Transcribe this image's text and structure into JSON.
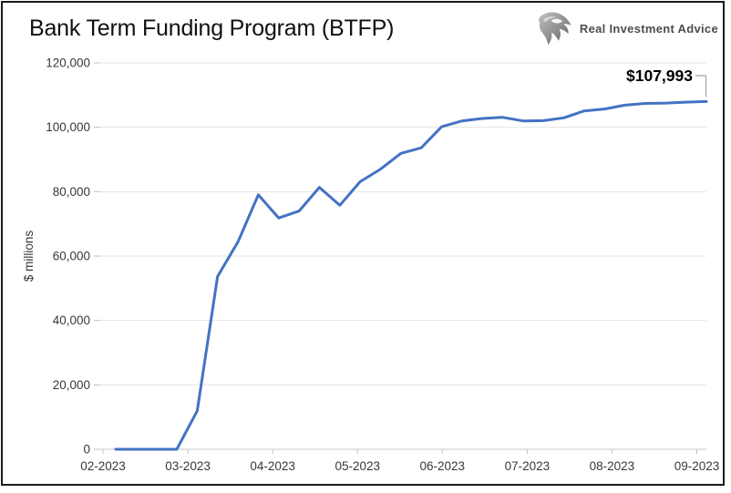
{
  "window": {
    "frame_color": "#1a1a1a",
    "background": "#ffffff"
  },
  "header": {
    "title": "Bank Term Funding Program (BTFP)",
    "brand": {
      "icon": "eagle-icon",
      "text": "Real Investment Advice"
    }
  },
  "chart_data": {
    "type": "line",
    "title": "Bank Term Funding Program (BTFP)",
    "xlabel": "",
    "ylabel": "$ millions",
    "ylim": [
      0,
      120000
    ],
    "ytick_interval": 20000,
    "ytick_labels": [
      "0",
      "20,000",
      "40,000",
      "60,000",
      "80,000",
      "100,000",
      "120,000"
    ],
    "xtick_labels": [
      "02-2023",
      "03-2023",
      "04-2023",
      "05-2023",
      "06-2023",
      "07-2023",
      "08-2023",
      "09-2023"
    ],
    "grid": "horizontal",
    "legend": "none",
    "frequency": "weekly",
    "annotation": {
      "text": "$107,993",
      "value": 107993
    },
    "colors": {
      "line": "#4472c4",
      "gridline": "#e4e4e4",
      "axis": "#c8c8c8",
      "tick": "#c0c0c0",
      "leader": "#a6a6a6"
    },
    "series": [
      {
        "name": "BTFP",
        "values": [
          0,
          0,
          0,
          0,
          11943,
          53669,
          64403,
          79021,
          71837,
          73982,
          81327,
          75778,
          83101,
          87006,
          91907,
          93615,
          100161,
          101969,
          102729,
          103081,
          101959,
          102053,
          102925,
          105078,
          105680,
          106864,
          107398,
          107528,
          107797,
          107993
        ]
      }
    ]
  }
}
